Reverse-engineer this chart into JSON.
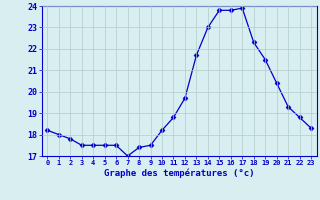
{
  "hours": [
    0,
    1,
    2,
    3,
    4,
    5,
    6,
    7,
    8,
    9,
    10,
    11,
    12,
    13,
    14,
    15,
    16,
    17,
    18,
    19,
    20,
    21,
    22,
    23
  ],
  "temperatures": [
    18.2,
    18.0,
    17.8,
    17.5,
    17.5,
    17.5,
    17.5,
    17.0,
    17.4,
    17.5,
    18.2,
    18.8,
    19.7,
    21.7,
    23.0,
    23.8,
    23.8,
    23.9,
    22.3,
    21.5,
    20.4,
    19.3,
    18.8,
    18.3
  ],
  "ylim": [
    17,
    24
  ],
  "yticks": [
    17,
    18,
    19,
    20,
    21,
    22,
    23,
    24
  ],
  "line_color": "#0000cc",
  "marker": "D",
  "marker_size": 2.5,
  "background_color": "#d8eef0",
  "grid_color": "#b0cccc",
  "xlabel": "Graphe des températures (°c)",
  "xlabel_color": "#0000cc",
  "tick_color": "#0000cc",
  "axis_bg": "#d8eef0"
}
